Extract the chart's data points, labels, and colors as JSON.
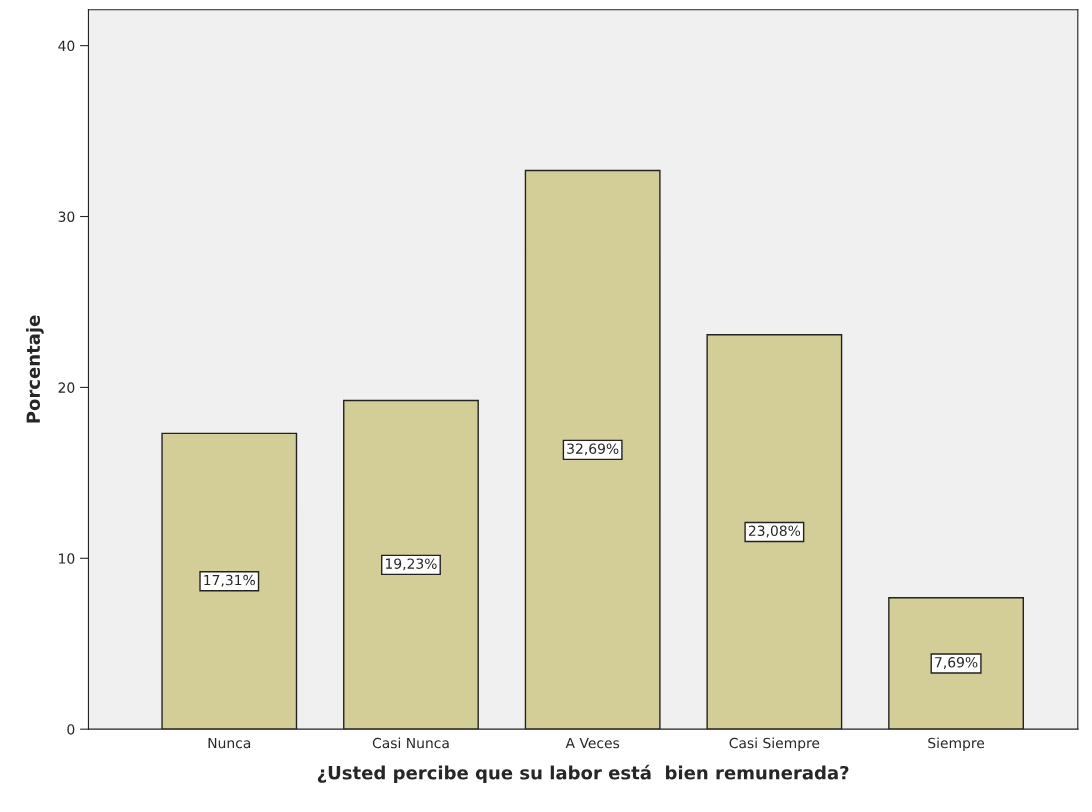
{
  "chart_data": {
    "type": "bar",
    "xlabel": "¿Usted percibe que su labor está  bien remunerada?",
    "ylabel": "Porcentaje",
    "categories": [
      "Nunca",
      "Casi Nunca",
      "A Veces",
      "Casi Siempre",
      "Siempre"
    ],
    "values": [
      17.31,
      19.23,
      32.69,
      23.08,
      7.69
    ],
    "value_labels": [
      "17,31%",
      "19,23%",
      "32,69%",
      "23,08%",
      "7,69%"
    ],
    "color": "#d3ce97",
    "ylim": [
      0,
      42.1
    ],
    "yticks": [
      0,
      10,
      20,
      30,
      40
    ],
    "grid": false
  }
}
